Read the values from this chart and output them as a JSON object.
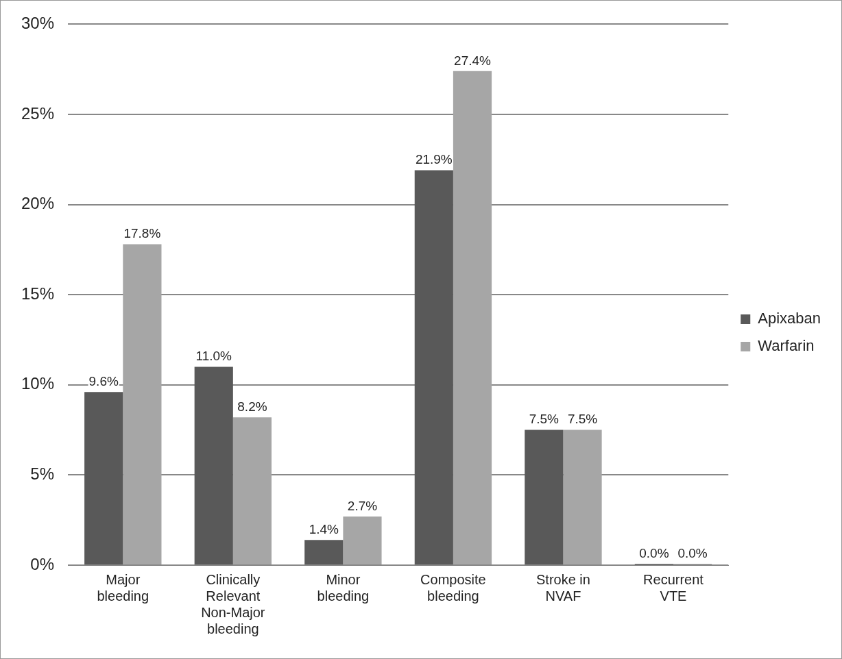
{
  "chart_data": {
    "type": "bar",
    "categories": [
      "Major bleeding",
      "Clinically Relevant Non-Major bleeding",
      "Minor bleeding",
      "Composite bleeding",
      "Stroke in NVAF",
      "Recurrent VTE"
    ],
    "series": [
      {
        "name": "Apixaban",
        "color": "#595959",
        "values": [
          9.6,
          11.0,
          1.4,
          21.9,
          7.5,
          0.0
        ],
        "value_labels": [
          "9.6%",
          "11.0%",
          "1.4%",
          "21.9%",
          "7.5%",
          "0.0%"
        ]
      },
      {
        "name": "Warfarin",
        "color": "#a6a6a6",
        "values": [
          17.8,
          8.2,
          2.7,
          27.4,
          7.5,
          0.0
        ],
        "value_labels": [
          "17.8%",
          "8.2%",
          "2.7%",
          "27.4%",
          "7.5%",
          "0.0%"
        ]
      }
    ],
    "ylim": [
      0,
      30
    ],
    "yticks": [
      {
        "value": 0,
        "label": "0%"
      },
      {
        "value": 5,
        "label": "5%"
      },
      {
        "value": 10,
        "label": "10%"
      },
      {
        "value": 15,
        "label": "15%"
      },
      {
        "value": 20,
        "label": "20%"
      },
      {
        "value": 25,
        "label": "25%"
      },
      {
        "value": 30,
        "label": "30%"
      }
    ],
    "grid": "y",
    "legend": "right"
  }
}
